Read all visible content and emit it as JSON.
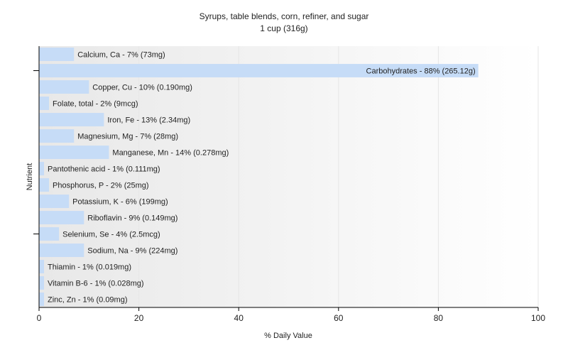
{
  "chart_data": {
    "type": "bar",
    "orientation": "horizontal",
    "title": "Syrups, table blends, corn, refiner, and sugar",
    "subtitle": "1 cup (316g)",
    "xlabel": "% Daily Value",
    "ylabel": "Nutrient",
    "xlim": [
      0,
      100
    ],
    "x_ticks": [
      0,
      20,
      40,
      60,
      80,
      100
    ],
    "grid": true,
    "bar_color": "#c6dcf7",
    "background_gradient": [
      "#e8e8e8",
      "#ffffff"
    ],
    "categories": [
      "Calcium, Ca",
      "Carbohydrates",
      "Copper, Cu",
      "Folate, total",
      "Iron, Fe",
      "Magnesium, Mg",
      "Manganese, Mn",
      "Pantothenic acid",
      "Phosphorus, P",
      "Potassium, K",
      "Riboflavin",
      "Selenium, Se",
      "Sodium, Na",
      "Thiamin",
      "Vitamin B-6",
      "Zinc, Zn"
    ],
    "values": [
      7,
      88,
      10,
      2,
      13,
      7,
      14,
      1,
      2,
      6,
      9,
      4,
      9,
      1,
      1,
      1
    ],
    "labels": [
      "Calcium, Ca - 7% (73mg)",
      "Carbohydrates - 88% (265.12g)",
      "Copper, Cu - 10% (0.190mg)",
      "Folate, total - 2% (9mcg)",
      "Iron, Fe - 13% (2.34mg)",
      "Magnesium, Mg - 7% (28mg)",
      "Manganese, Mn - 14% (0.278mg)",
      "Pantothenic acid - 1% (0.111mg)",
      "Phosphorus, P - 2% (25mg)",
      "Potassium, K - 6% (199mg)",
      "Riboflavin - 9% (0.149mg)",
      "Selenium, Se - 4% (2.5mcg)",
      "Sodium, Na - 9% (224mg)",
      "Thiamin - 1% (0.019mg)",
      "Vitamin B-6 - 1% (0.028mg)",
      "Zinc, Zn - 1% (0.09mg)"
    ]
  }
}
